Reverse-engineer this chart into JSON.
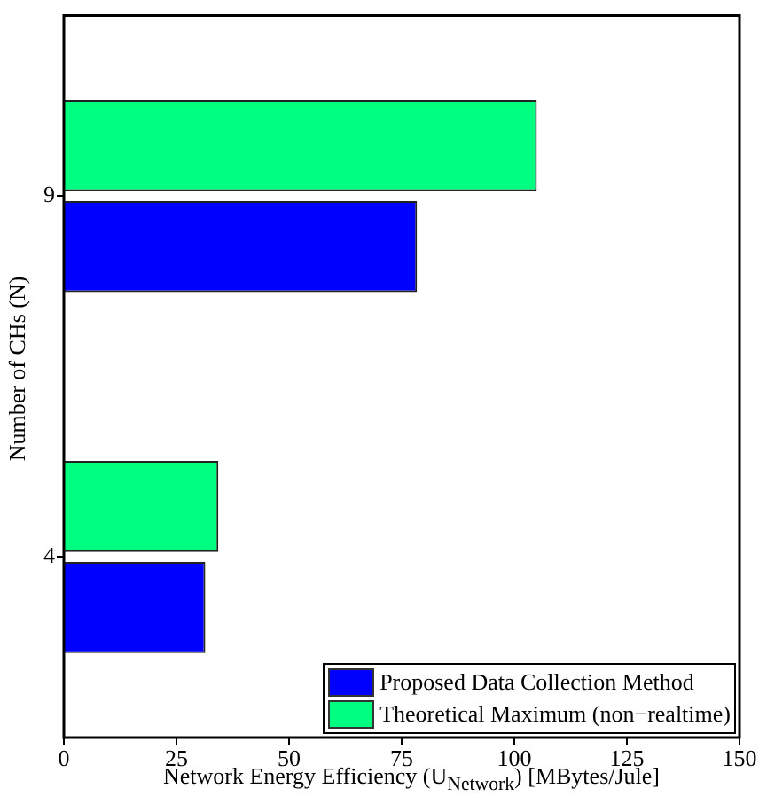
{
  "chart_data": {
    "type": "bar",
    "orientation": "horizontal",
    "xlabel": "Network Energy Efficiency (U$_{Network}$) [MBytes/Jule]",
    "ylabel": "Number of CHs (N)",
    "categories": [
      "9",
      "4"
    ],
    "series": [
      {
        "name": "Proposed Data Collection Method",
        "color": "#0000ff",
        "values": [
          78.4,
          31.4
        ]
      },
      {
        "name": "Theoretical Maximum (non−realtime)",
        "color": "#00ff80",
        "values": [
          105,
          34.3
        ]
      }
    ],
    "xlim": [
      0,
      150
    ],
    "xticks": [
      0,
      25,
      50,
      75,
      100,
      125,
      150
    ],
    "grid": false,
    "legend": "bottom right"
  }
}
